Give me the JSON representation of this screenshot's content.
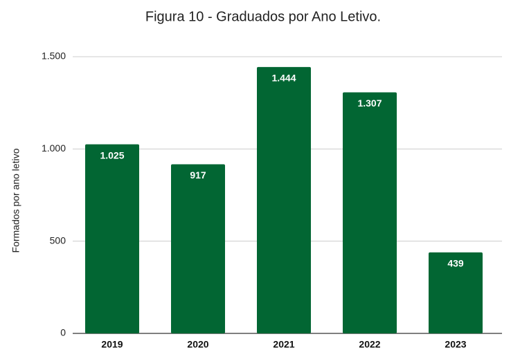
{
  "chart_data": {
    "type": "bar",
    "title": "Figura 10 - Graduados por Ano Letivo.",
    "y_label": "Formados por ano letivo",
    "categories": [
      "2019",
      "2020",
      "2021",
      "2022",
      "2023"
    ],
    "values": [
      1025,
      917,
      1444,
      1307,
      439
    ],
    "value_labels": [
      "1.025",
      "917",
      "1.444",
      "1.307",
      "439"
    ],
    "color": "#026633",
    "ylim": [
      0,
      1500
    ],
    "yticks": [
      0,
      500,
      {
        "value": 1000,
        "label": "1.000"
      },
      {
        "value": 1500,
        "label": "1.500"
      }
    ],
    "grid": true
  }
}
